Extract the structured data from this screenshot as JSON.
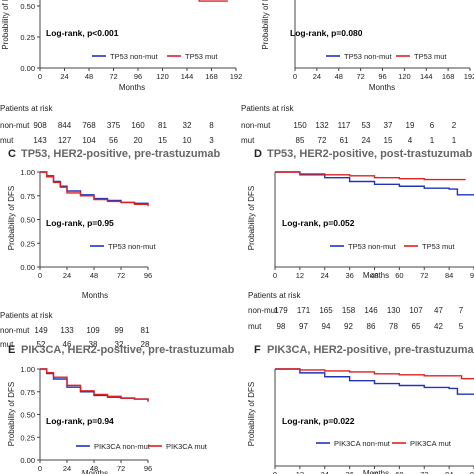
{
  "colors": {
    "non_mut": "#2233bb",
    "mut": "#dd2222",
    "title": "#666666",
    "text": "#222222"
  },
  "common": {
    "ylabel_full": "Probability of DFS",
    "ylabel_clipped": "Probability of DF",
    "xlabel": "Months",
    "risk_header": "Patients at risk"
  },
  "chart_data": [
    {
      "id": "A",
      "type": "line",
      "title": "",
      "pvalue_text": "Log-rank, p<0.001",
      "ylim": [
        0,
        1
      ],
      "yticks": [
        0.75,
        0.5,
        0.25,
        0.0
      ],
      "ytick_labels": [
        "0.75",
        "0.50",
        "0.25",
        "0.00"
      ],
      "xlim": [
        0,
        192
      ],
      "xticks": [
        0,
        24,
        48,
        72,
        96,
        120,
        144,
        168,
        192
      ],
      "series": [
        {
          "name": "TP53 non-mut",
          "color": "#2233bb",
          "points": [
            [
              0,
              0.95
            ],
            [
              12,
              0.9
            ],
            [
              24,
              0.86
            ],
            [
              36,
              0.83
            ],
            [
              48,
              0.8
            ],
            [
              60,
              0.78
            ],
            [
              72,
              0.77
            ],
            [
              96,
              0.75
            ],
            [
              120,
              0.74
            ],
            [
              144,
              0.72
            ],
            [
              160,
              0.66
            ],
            [
              168,
              0.66
            ],
            [
              176,
              0.6
            ],
            [
              192,
              0.6
            ]
          ]
        },
        {
          "name": "TP53 mut",
          "color": "#dd2222",
          "points": [
            [
              0,
              0.95
            ],
            [
              12,
              0.85
            ],
            [
              24,
              0.79
            ],
            [
              36,
              0.75
            ],
            [
              48,
              0.72
            ],
            [
              60,
              0.7
            ],
            [
              72,
              0.66
            ],
            [
              96,
              0.62
            ],
            [
              120,
              0.6
            ],
            [
              144,
              0.57
            ],
            [
              156,
              0.54
            ],
            [
              168,
              0.54
            ],
            [
              184,
              0.54
            ]
          ]
        }
      ],
      "risk": {
        "header": "Patients at risk",
        "rows": [
          {
            "label": "non-mut",
            "values": [
              "908",
              "844",
              "768",
              "375",
              "160",
              "81",
              "32",
              "8"
            ]
          },
          {
            "label": "mut",
            "values": [
              "143",
              "127",
              "104",
              "56",
              "20",
              "15",
              "10",
              "3"
            ]
          }
        ]
      }
    },
    {
      "id": "B",
      "type": "line",
      "title": "",
      "pvalue_text": "Log-rank, p=0.080",
      "ylim": [
        0,
        1
      ],
      "yticks": [],
      "ytick_labels": [],
      "xlim": [
        0,
        192
      ],
      "xticks": [
        0,
        24,
        48,
        72,
        96,
        120,
        144,
        168,
        192
      ],
      "series": [
        {
          "name": "TP53 non-mut",
          "color": "#2233bb",
          "points": [
            [
              0,
              0.95
            ],
            [
              24,
              0.88
            ],
            [
              48,
              0.83
            ],
            [
              72,
              0.79
            ],
            [
              96,
              0.77
            ],
            [
              120,
              0.75
            ],
            [
              144,
              0.74
            ],
            [
              168,
              0.74
            ],
            [
              176,
              0.72
            ],
            [
              184,
              0.72
            ]
          ]
        },
        {
          "name": "TP53 mut",
          "color": "#dd2222",
          "points": [
            [
              0,
              0.95
            ],
            [
              24,
              0.85
            ],
            [
              48,
              0.8
            ],
            [
              72,
              0.76
            ],
            [
              96,
              0.7
            ],
            [
              120,
              0.67
            ],
            [
              144,
              0.67
            ],
            [
              168,
              0.6
            ],
            [
              184,
              0.6
            ]
          ]
        }
      ],
      "risk": {
        "header": "Patients at risk",
        "rows": [
          {
            "label": "non-mut",
            "values": [
              "150",
              "132",
              "117",
              "53",
              "37",
              "19",
              "6",
              "2"
            ]
          },
          {
            "label": "mut",
            "values": [
              "85",
              "72",
              "61",
              "24",
              "15",
              "4",
              "1",
              "1"
            ]
          }
        ]
      }
    },
    {
      "id": "C",
      "type": "line",
      "title": "TP53, HER2-positive, pre-trastuzumab",
      "pvalue_text": "Log-rank, p=0.95",
      "ylim": [
        0,
        1
      ],
      "yticks": [
        1.0,
        0.75,
        0.5,
        0.25,
        0.0
      ],
      "ytick_labels": [
        "1.00",
        "0.75",
        "0.50",
        "0.25",
        "0.00"
      ],
      "xlim": [
        0,
        96
      ],
      "xticks": [
        0,
        24,
        48,
        72,
        96
      ],
      "series": [
        {
          "name": "TP53 non-mut",
          "color": "#2233bb",
          "points": [
            [
              0,
              1.0
            ],
            [
              6,
              0.96
            ],
            [
              12,
              0.9
            ],
            [
              18,
              0.85
            ],
            [
              24,
              0.8
            ],
            [
              36,
              0.76
            ],
            [
              48,
              0.72
            ],
            [
              60,
              0.7
            ],
            [
              72,
              0.68
            ],
            [
              84,
              0.67
            ],
            [
              96,
              0.66
            ]
          ]
        },
        {
          "name": "TP53 mut",
          "color": "#dd2222",
          "points": [
            [
              0,
              1.0
            ],
            [
              6,
              0.95
            ],
            [
              12,
              0.89
            ],
            [
              18,
              0.84
            ],
            [
              24,
              0.78
            ],
            [
              36,
              0.75
            ],
            [
              48,
              0.71
            ],
            [
              60,
              0.69
            ],
            [
              72,
              0.68
            ],
            [
              84,
              0.66
            ],
            [
              96,
              0.64
            ]
          ]
        }
      ],
      "risk": {
        "header": "Patients at risk",
        "rows": [
          {
            "label": "non-mut",
            "values": [
              "149",
              "133",
              "109",
              "99",
              "81"
            ]
          },
          {
            "label": "mut",
            "values": [
              "52",
              "46",
              "38",
              "32",
              "28"
            ]
          }
        ]
      }
    },
    {
      "id": "D",
      "type": "line",
      "title": "TP53, HER2-positive, post-trastuzumab",
      "pvalue_text": "Log-rank, p=0.052",
      "ylim": [
        0,
        1
      ],
      "yticks": [],
      "ytick_labels": [],
      "xlim": [
        0,
        96
      ],
      "xticks": [
        0,
        12,
        24,
        36,
        48,
        60,
        72,
        84,
        96
      ],
      "series": [
        {
          "name": "TP53 non-mut",
          "color": "#2233bb",
          "points": [
            [
              0,
              1.0
            ],
            [
              12,
              0.97
            ],
            [
              24,
              0.94
            ],
            [
              36,
              0.9
            ],
            [
              48,
              0.87
            ],
            [
              60,
              0.85
            ],
            [
              72,
              0.83
            ],
            [
              84,
              0.82
            ],
            [
              88,
              0.76
            ],
            [
              96,
              0.76
            ]
          ]
        },
        {
          "name": "TP53 mut",
          "color": "#dd2222",
          "points": [
            [
              0,
              1.0
            ],
            [
              12,
              0.98
            ],
            [
              24,
              0.97
            ],
            [
              36,
              0.96
            ],
            [
              48,
              0.94
            ],
            [
              60,
              0.93
            ],
            [
              72,
              0.92
            ],
            [
              84,
              0.92
            ],
            [
              92,
              0.92
            ]
          ]
        }
      ],
      "risk": {
        "header": "Patients at risk",
        "rows": [
          {
            "label": "non-mut",
            "values": [
              "179",
              "171",
              "165",
              "158",
              "146",
              "130",
              "107",
              "47",
              "7"
            ]
          },
          {
            "label": "mut",
            "values": [
              "98",
              "97",
              "94",
              "92",
              "86",
              "78",
              "65",
              "42",
              "5"
            ]
          }
        ]
      }
    },
    {
      "id": "E",
      "type": "line",
      "title": "PIK3CA, HER2-positive, pre-trastuzumab",
      "pvalue_text": "Log-rank, p=0.94",
      "ylim": [
        0,
        1
      ],
      "yticks": [
        1.0,
        0.75,
        0.5,
        0.25,
        0.0
      ],
      "ytick_labels": [
        "1.00",
        "0.75",
        "0.50",
        "0.25",
        "0.00"
      ],
      "xlim": [
        0,
        96
      ],
      "xticks": [
        0,
        24,
        48,
        72,
        96
      ],
      "series": [
        {
          "name": "PIK3CA non-mut",
          "color": "#2233bb",
          "points": [
            [
              0,
              1.0
            ],
            [
              6,
              0.95
            ],
            [
              12,
              0.89
            ],
            [
              24,
              0.8
            ],
            [
              36,
              0.75
            ],
            [
              48,
              0.71
            ],
            [
              60,
              0.69
            ],
            [
              72,
              0.68
            ],
            [
              84,
              0.67
            ],
            [
              96,
              0.65
            ]
          ]
        },
        {
          "name": "PIK3CA mut",
          "color": "#dd2222",
          "points": [
            [
              0,
              1.0
            ],
            [
              6,
              0.96
            ],
            [
              12,
              0.91
            ],
            [
              24,
              0.82
            ],
            [
              36,
              0.76
            ],
            [
              48,
              0.72
            ],
            [
              60,
              0.7
            ],
            [
              72,
              0.68
            ],
            [
              84,
              0.67
            ],
            [
              96,
              0.64
            ]
          ]
        }
      ],
      "risk": null
    },
    {
      "id": "F",
      "type": "line",
      "title": "PIK3CA, HER2-positive, pre-trastuzumab",
      "pvalue_text": "Log-rank, p=0.022",
      "ylim": [
        0,
        1
      ],
      "yticks": [],
      "ytick_labels": [],
      "xlim": [
        0,
        96
      ],
      "xticks": [
        0,
        12,
        24,
        36,
        48,
        60,
        72,
        84,
        96
      ],
      "series": [
        {
          "name": "PIK3CA non-mut",
          "color": "#2233bb",
          "points": [
            [
              0,
              1.0
            ],
            [
              12,
              0.96
            ],
            [
              24,
              0.92
            ],
            [
              36,
              0.88
            ],
            [
              48,
              0.85
            ],
            [
              60,
              0.83
            ],
            [
              72,
              0.81
            ],
            [
              84,
              0.8
            ],
            [
              88,
              0.74
            ],
            [
              96,
              0.74
            ]
          ]
        },
        {
          "name": "PIK3CA mut",
          "color": "#dd2222",
          "points": [
            [
              0,
              1.0
            ],
            [
              12,
              0.99
            ],
            [
              24,
              0.98
            ],
            [
              36,
              0.97
            ],
            [
              48,
              0.95
            ],
            [
              60,
              0.94
            ],
            [
              72,
              0.93
            ],
            [
              84,
              0.93
            ],
            [
              90,
              0.9
            ],
            [
              96,
              0.9
            ]
          ]
        }
      ],
      "risk": null
    }
  ]
}
